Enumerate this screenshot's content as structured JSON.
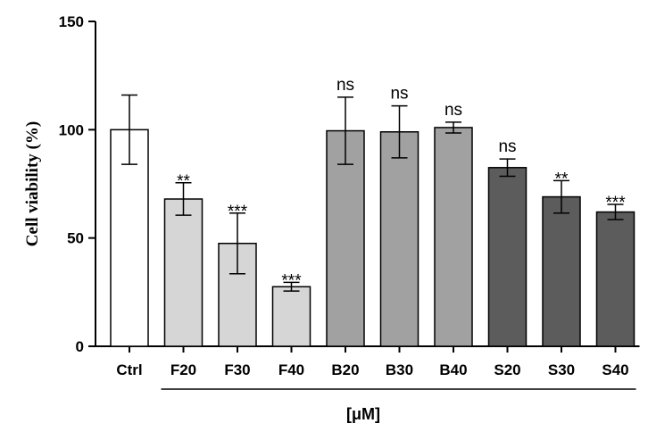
{
  "chart_data": {
    "type": "bar",
    "title": "",
    "ylabel": "Cell viability (%)",
    "xlabel": "[μM]",
    "ylim": [
      0,
      150
    ],
    "yticks": [
      0,
      50,
      100,
      150
    ],
    "categories": [
      "Ctrl",
      "F20",
      "F30",
      "F40",
      "B20",
      "B30",
      "B40",
      "S20",
      "S30",
      "S40"
    ],
    "values": [
      100,
      68,
      47.5,
      27.5,
      99.5,
      99,
      101,
      82.5,
      69,
      62
    ],
    "errors": [
      16,
      7.5,
      14,
      2,
      15.5,
      12,
      2.5,
      4,
      7.5,
      3.5
    ],
    "significance": [
      "",
      "**",
      "***",
      "***",
      "ns",
      "ns",
      "ns",
      "ns",
      "**",
      "***"
    ],
    "colors": [
      "#ffffff",
      "#d6d6d6",
      "#d6d6d6",
      "#d6d6d6",
      "#a1a1a1",
      "#a1a1a1",
      "#a1a1a1",
      "#5c5c5c",
      "#5c5c5c",
      "#5c5c5c"
    ],
    "grid": false,
    "legend": "none"
  }
}
